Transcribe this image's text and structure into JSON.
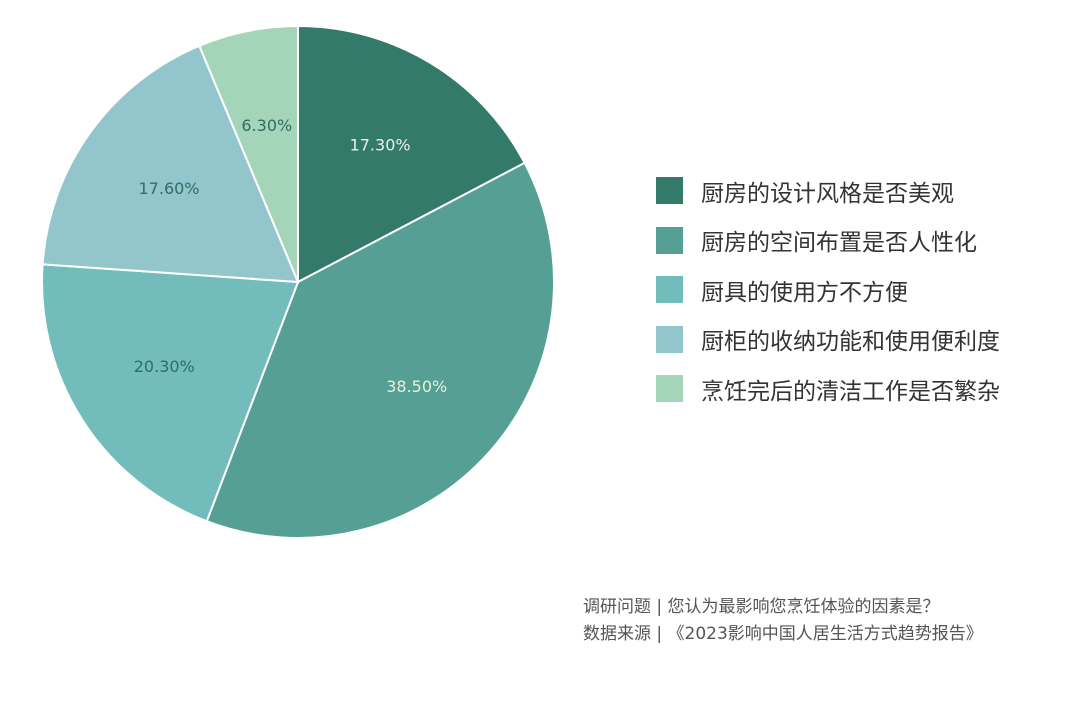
{
  "chart_data": {
    "type": "pie",
    "categories": [
      "厨房的设计风格是否美观",
      "厨房的空间布置是否人性化",
      "厨具的使用方不方便",
      "厨柜的收纳功能和使用便利度",
      "烹饪完后的清洁工作是否繁杂"
    ],
    "values": [
      17.3,
      38.5,
      20.3,
      17.6,
      6.3
    ],
    "labels": [
      "17.30%",
      "38.50%",
      "20.30%",
      "17.60%",
      "6.30%"
    ],
    "colors": [
      "#337a6b",
      "#559f94",
      "#72bcbc",
      "#92c6cc",
      "#a5d5b9"
    ],
    "label_colors": [
      "#e6f1ee",
      "#e8f0d8",
      "#2f6e63",
      "#2f6e63",
      "#2f6e63"
    ],
    "legend_position": "right",
    "start_angle": "top",
    "direction": "clockwise"
  },
  "footer": {
    "question": "调研问题 | 您认为最影响您烹饪体验的因素是？",
    "source": "数据来源 | 《2023影响中国人居生活方式趋势报告》"
  }
}
